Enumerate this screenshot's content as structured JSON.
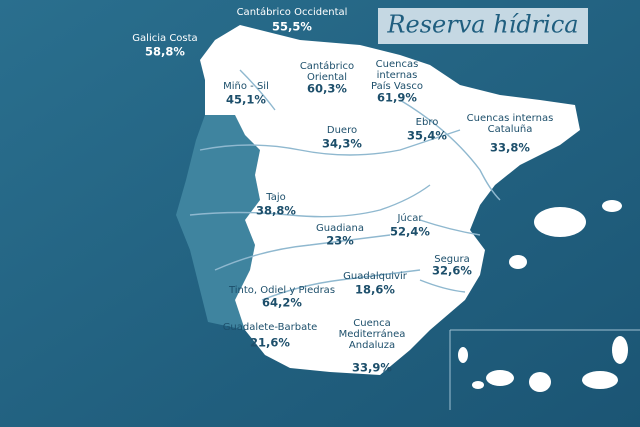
{
  "title": "Reserva hídrica",
  "basins": [
    {
      "name_lines": [
        "Galicia Costa"
      ],
      "value": "58,8%"
    },
    {
      "name_lines": [
        "Cantábrico Occidental"
      ],
      "value": "55,5%"
    },
    {
      "name_lines": [
        "Miño - Sil"
      ],
      "value": "45,1%"
    },
    {
      "name_lines": [
        "Cantábrico",
        "Oriental"
      ],
      "value": "60,3%"
    },
    {
      "name_lines": [
        "Cuencas",
        "internas",
        "País Vasco"
      ],
      "value": "61,9%"
    },
    {
      "name_lines": [
        "Ebro"
      ],
      "value": "35,4%"
    },
    {
      "name_lines": [
        "Cuencas internas",
        "Cataluña"
      ],
      "value": "33,8%"
    },
    {
      "name_lines": [
        "Duero"
      ],
      "value": "34,3%"
    },
    {
      "name_lines": [
        "Tajo"
      ],
      "value": "38,8%"
    },
    {
      "name_lines": [
        "Júcar"
      ],
      "value": "52,4%"
    },
    {
      "name_lines": [
        "Guadiana"
      ],
      "value": "23%"
    },
    {
      "name_lines": [
        "Segura"
      ],
      "value": "32,6%"
    },
    {
      "name_lines": [
        "Guadalquivir"
      ],
      "value": "18,6%"
    },
    {
      "name_lines": [
        "Tinto, Odiel y Piedras"
      ],
      "value": "64,2%"
    },
    {
      "name_lines": [
        "Guadalete-Barbate"
      ],
      "value": "21,6%"
    },
    {
      "name_lines": [
        "Cuenca",
        "Mediterránea",
        "Andaluza"
      ],
      "value": "33,9%"
    }
  ]
}
